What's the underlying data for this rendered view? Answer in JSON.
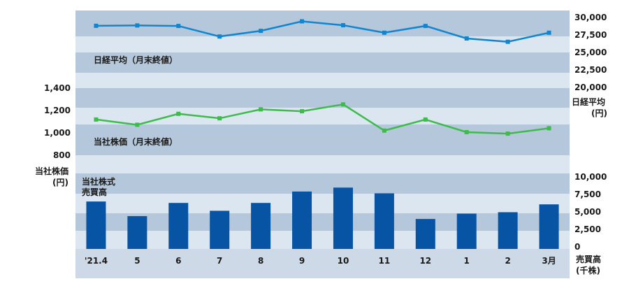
{
  "colors": {
    "band_dark": "#b5c7db",
    "band_light": "#dbe6f1",
    "nikkei_line": "#0f86cf",
    "stock_line": "#3dbb4b",
    "bars": "#0654a3",
    "axis_band": "#cdd9e6"
  },
  "chart_data": {
    "type": "composite",
    "categories": [
      "'21.4",
      "5",
      "6",
      "7",
      "8",
      "9",
      "10",
      "11",
      "12",
      "1",
      "2",
      "3月"
    ],
    "panels": [
      {
        "type": "line",
        "label": "日経平均（月末終値）",
        "axis_title": "日経平均\n(円)",
        "axis_side": "right",
        "ticks": [
          "30,000",
          "27,500",
          "25,000",
          "22,500",
          "20,000"
        ],
        "ylim": [
          20000,
          30000
        ],
        "values": [
          28813,
          28860,
          28791,
          27283,
          28089,
          29452,
          28892,
          27821,
          28791,
          27001,
          26526,
          27821
        ]
      },
      {
        "type": "line",
        "label": "当社株価（月末終値）",
        "axis_title": "当社株価\n(円)",
        "axis_side": "left",
        "ticks": [
          "1,400",
          "1,200",
          "1,000",
          "800"
        ],
        "ylim": [
          800,
          1400
        ],
        "values": [
          1113,
          1066,
          1164,
          1124,
          1204,
          1187,
          1248,
          1014,
          1113,
          1000,
          987,
          1035
        ]
      },
      {
        "type": "bar",
        "label": "当社株式\n売買高",
        "axis_title": "売買高\n(千株)",
        "axis_side": "right",
        "ticks": [
          "10,000",
          "7,500",
          "5,000",
          "2,500",
          "0"
        ],
        "ylim": [
          0,
          10000
        ],
        "values": [
          6650,
          4600,
          6450,
          5350,
          6450,
          8050,
          8600,
          7800,
          4200,
          4950,
          5150,
          6250
        ]
      }
    ]
  }
}
